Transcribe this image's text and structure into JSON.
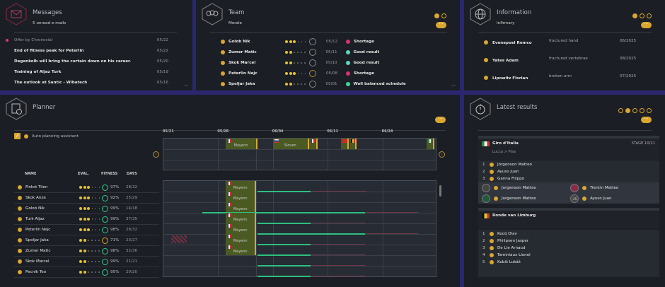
{
  "messages": {
    "title": "Messages",
    "subtitle": "5 unread e-mails",
    "items": [
      {
        "text": "Offer by Chronovial",
        "date": "05/22",
        "unread": true
      },
      {
        "text": "End of fitness peak for Peterlin",
        "date": "05/22"
      },
      {
        "text": "Degenkolb will bring the curtain down on his career.",
        "date": "05/20"
      },
      {
        "text": "Training of Aljaz Turk",
        "date": "05/19"
      },
      {
        "text": "The outlook at Santic - Wibatech",
        "date": "05/16"
      }
    ]
  },
  "team": {
    "title": "Team",
    "subtitle": "Morale",
    "items": [
      {
        "name": "Golob Nik",
        "date": "05/12",
        "event": "Shortage",
        "color": "#d6336c",
        "stars": 3,
        "mood": "neutral"
      },
      {
        "name": "Zumer Matic",
        "date": "05/11",
        "event": "Good result",
        "color": "#5fd6c0",
        "stars": 2,
        "mood": "neutral"
      },
      {
        "name": "Skok Marcel",
        "date": "05/10",
        "event": "Good result",
        "color": "#5fd6c0",
        "stars": 2,
        "mood": "neutral"
      },
      {
        "name": "Peterlin Nejc",
        "date": "05/08",
        "event": "Shortage",
        "color": "#d6336c",
        "stars": 3,
        "mood": "sad"
      },
      {
        "name": "Spoljar Jaka",
        "date": "05/01",
        "event": "Well balanced schedule",
        "color": "#3fd69a",
        "stars": 2,
        "mood": "neutral"
      }
    ]
  },
  "info": {
    "title": "Information",
    "subtitle": "Infirmary",
    "items": [
      {
        "name": "Evenepoel Remco",
        "injury": "fractured hand",
        "date": "06/2025"
      },
      {
        "name": "Yates Adam",
        "injury": "fractured vertebrae",
        "date": "08/2025"
      },
      {
        "name": "Lipowitz Florian",
        "injury": "broken arm",
        "date": "07/2025"
      }
    ]
  },
  "planner": {
    "title": "Planner",
    "auto_label": "Auto planning assistant",
    "headers": {
      "name": "NAME",
      "eval": "EVAL.",
      "fitness": "FITNESS",
      "days": "DAYS"
    },
    "dates": [
      "05/21",
      "05/28",
      "06/04",
      "06/11",
      "06/18"
    ],
    "top_races": [
      {
        "label": "Mayenn",
        "start": 8,
        "end": 12,
        "flag": "fr"
      },
      {
        "label": "Sloven",
        "start": 14,
        "end": 18.6,
        "flag": "si"
      },
      {
        "label": "",
        "start": 18.6,
        "end": 19.7,
        "flag": "fr"
      },
      {
        "label": "",
        "start": 22.7,
        "end": 23.7,
        "flag": "ch"
      },
      {
        "label": "",
        "start": 23.8,
        "end": 24.7,
        "flag": "be"
      },
      {
        "label": "",
        "start": 33.6,
        "end": 34.6,
        "flag": "ital"
      }
    ],
    "riders": [
      {
        "name": "Finkst Tilen",
        "stars": 3,
        "fitness": "97%",
        "days": "28/32",
        "race": "Mayenn",
        "green": [
          12,
          18.8
        ],
        "pink": [
          18.8,
          26
        ]
      },
      {
        "name": "Skok Anze",
        "stars": 3,
        "fitness": "92%",
        "days": "25/29",
        "race": "Mayenn"
      },
      {
        "name": "Golob Nik",
        "stars": 3,
        "fitness": "99%",
        "days": "14/18",
        "race": "Mayenn",
        "green": [
          5,
          25.8
        ],
        "pink": [
          25.8,
          32.6
        ]
      },
      {
        "name": "Turk Aljaz",
        "stars": 3,
        "fitness": "99%",
        "days": "37/35",
        "race": "Mayenn",
        "green": [
          12,
          18.8
        ],
        "pink": [
          18.8,
          25.8
        ]
      },
      {
        "name": "Peterlin Nejc",
        "stars": 3,
        "fitness": "98%",
        "days": "28/32",
        "race": "Mayenn",
        "green": [
          12,
          25.8
        ],
        "pink": [
          25.8,
          32.6
        ]
      },
      {
        "name": "Spoljar Jaka",
        "stars": 2,
        "fitness": "71%",
        "days": "23/27",
        "race": "Mayenn",
        "green": [
          12,
          18.8
        ],
        "pink": [
          18.8,
          25.8
        ],
        "blocked": [
          1,
          3
        ]
      },
      {
        "name": "Zumer Matic",
        "stars": 2,
        "fitness": "98%",
        "days": "32/36",
        "race": "Mayenn",
        "green": [
          12,
          18.8
        ],
        "pink": [
          18.8,
          25.8
        ]
      },
      {
        "name": "Skok Marcel",
        "stars": 2,
        "fitness": "99%",
        "days": "21/21",
        "green": [
          12,
          18.8
        ],
        "pink": [
          18.8,
          25.8
        ]
      },
      {
        "name": "Pecnik Teo",
        "stars": 2,
        "fitness": "95%",
        "days": "20/20",
        "green": [
          12,
          18.8
        ],
        "pink": [
          18.8,
          25.8
        ]
      }
    ]
  },
  "results": {
    "title": "Latest results",
    "race1": {
      "name": "Giro d'Italia",
      "stage": "STAGE 10/21",
      "route": "Lucca > Pisa",
      "top": [
        "Jorgenson Matteo",
        "Ayuso Juan",
        "Ganna Filippo"
      ],
      "jerseys": [
        "Jorgenson Matteo",
        "Trentin Matteo",
        "Jorgenson Matteo",
        "Ayuso Juan"
      ],
      "young_label": "-25"
    },
    "race2": {
      "name": "Ronde van Limburg",
      "top": [
        "Kooij Olav",
        "Philipsen Jasper",
        "De Lie Arnaud",
        "Taminiaux Lionel",
        "Kubiš Lukáš"
      ]
    },
    "ranks": [
      "1",
      "2",
      "3",
      "4",
      "5"
    ]
  },
  "more_label": "···",
  "corner_label": "···"
}
